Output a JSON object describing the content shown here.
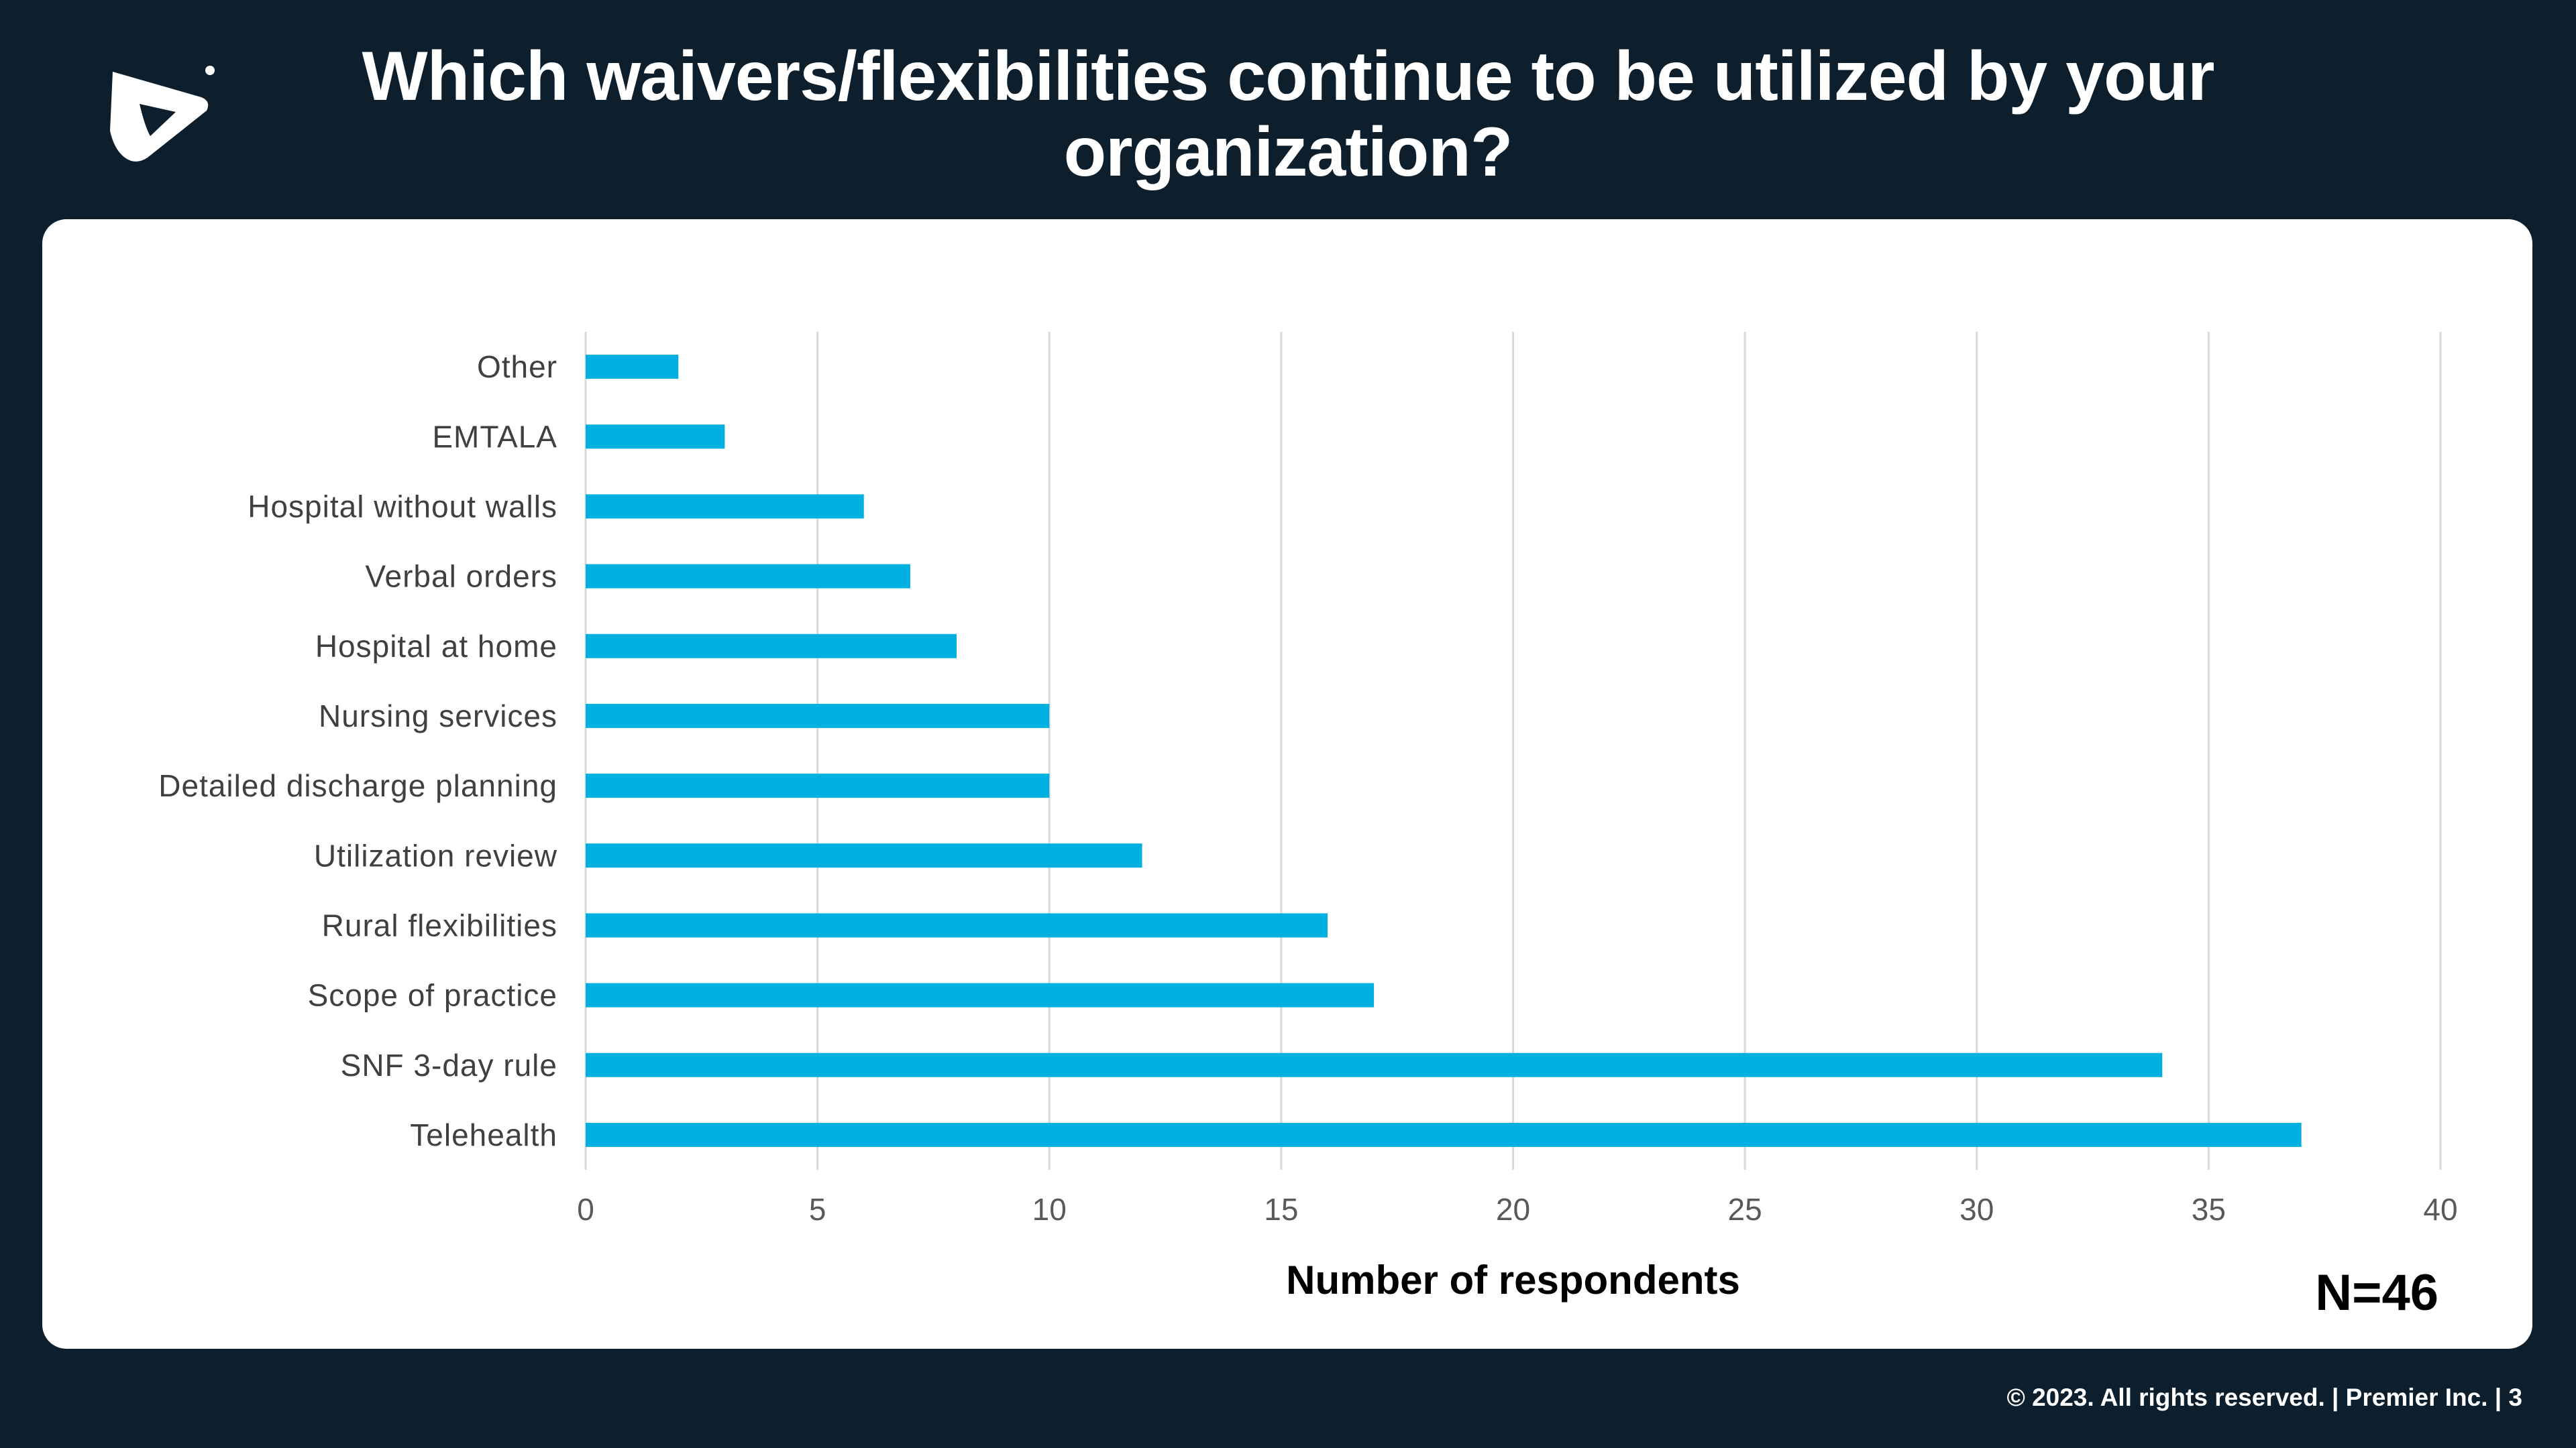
{
  "slide": {
    "title": "Which waivers/flexibilities continue to be utilized by your organization?",
    "footer": "© 2023. All rights reserved.  |  Premier Inc.  |  3",
    "n_label": "N=46"
  },
  "colors": {
    "bar": "#00b0e0",
    "background": "#0d1f2d",
    "grid": "#d9d9d9"
  },
  "chart_data": {
    "type": "bar",
    "orientation": "horizontal",
    "title": "Which waivers/flexibilities continue to be utilized by your organization?",
    "categories": [
      "Other",
      "EMTALA",
      "Hospital without walls",
      "Verbal orders",
      "Hospital at home",
      "Nursing services",
      "Detailed discharge planning",
      "Utilization review",
      "Rural flexibilities",
      "Scope of practice",
      "SNF 3-day rule",
      "Telehealth"
    ],
    "values": [
      2,
      3,
      6,
      7,
      8,
      10,
      10,
      12,
      16,
      17,
      34,
      37
    ],
    "xlabel": "Number of respondents",
    "ylabel": "",
    "xlim": [
      0,
      40
    ],
    "xticks": [
      0,
      5,
      10,
      15,
      20,
      25,
      30,
      35,
      40
    ],
    "grid": true,
    "legend": "none"
  }
}
